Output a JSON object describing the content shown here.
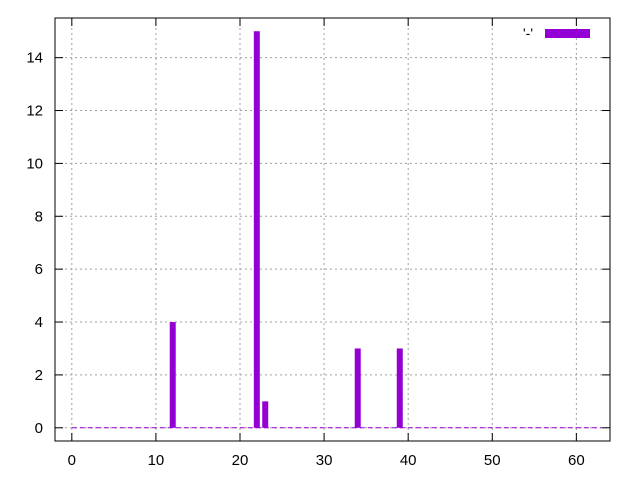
{
  "chart_data": {
    "type": "bar",
    "x_ticks": [
      0,
      10,
      20,
      30,
      40,
      50,
      60
    ],
    "y_ticks": [
      0,
      2,
      4,
      6,
      8,
      10,
      12,
      14
    ],
    "xlim": [
      -2,
      64
    ],
    "ylim": [
      -0.5,
      15.5
    ],
    "grid": true,
    "legend": {
      "position": "top-right",
      "label": "'-'"
    },
    "bar_color": "#9400d3",
    "baseline": {
      "from": 0,
      "to": 63,
      "style": "dashed"
    },
    "points": [
      {
        "x": 12,
        "y": 4
      },
      {
        "x": 22,
        "y": 15
      },
      {
        "x": 23,
        "y": 1
      },
      {
        "x": 34,
        "y": 3
      },
      {
        "x": 39,
        "y": 3
      }
    ]
  }
}
